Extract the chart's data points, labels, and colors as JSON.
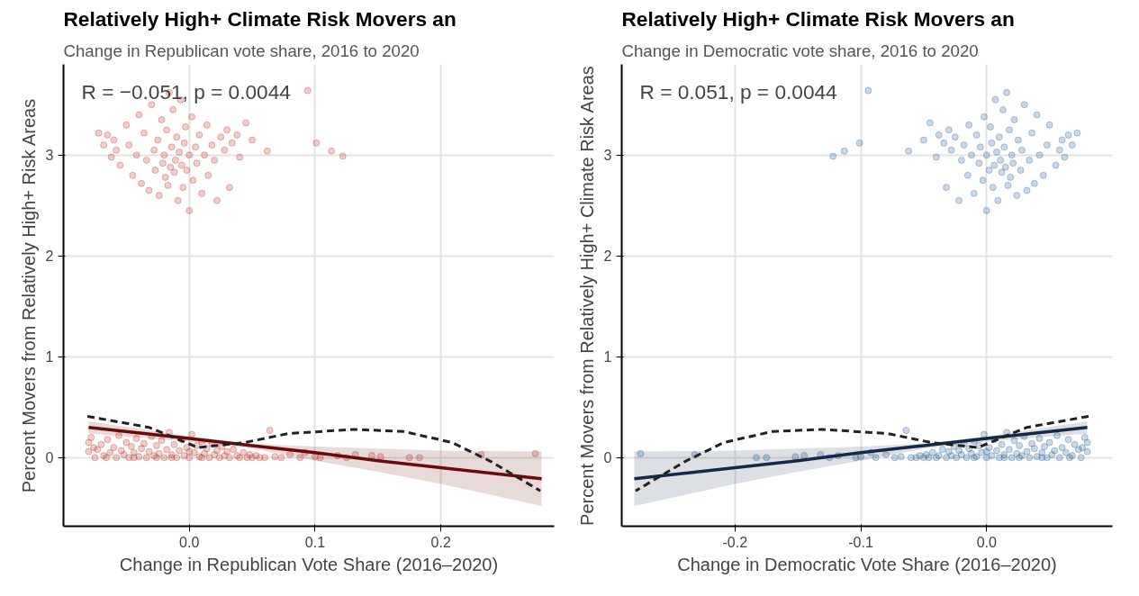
{
  "chart_data": [
    {
      "type": "scatter",
      "title": "Relatively High+ Climate Risk Movers an",
      "subtitle": "Change in Republican vote share, 2016 to 2020",
      "xlabel": "Change in Republican Vote Share (2016–2020)",
      "ylabel": "Percent Movers from Relatively High+ Risk Areas",
      "annotations": [
        "R = −0.051, p = 0.0044"
      ],
      "xlim": [
        -0.1,
        0.29
      ],
      "ylim": [
        -0.68,
        3.9
      ],
      "xticks": [
        {
          "value": 0,
          "label": "0.0"
        },
        0.1,
        0.2
      ],
      "yticks": [
        0,
        1,
        2,
        3
      ],
      "grid": true,
      "series": [
        {
          "marker": "circle",
          "color": "#c0392b",
          "x": [
            -0.065,
            -0.06,
            -0.058,
            -0.062,
            -0.055,
            -0.05,
            -0.048,
            -0.045,
            -0.042,
            -0.04,
            -0.038,
            -0.036,
            -0.034,
            -0.032,
            -0.03,
            -0.028,
            -0.027,
            -0.025,
            -0.024,
            -0.022,
            -0.021,
            -0.02,
            -0.019,
            -0.018,
            -0.017,
            -0.016,
            -0.015,
            -0.014,
            -0.013,
            -0.012,
            -0.011,
            -0.01,
            -0.009,
            -0.008,
            -0.007,
            -0.006,
            -0.005,
            -0.004,
            -0.003,
            -0.002,
            0.0,
            0.0,
            0.002,
            0.003,
            0.005,
            0.006,
            0.008,
            0.01,
            0.012,
            0.014,
            0.015,
            0.018,
            0.02,
            0.022,
            0.025,
            0.028,
            0.03,
            0.034,
            0.038,
            0.04,
            0.045,
            0.05,
            0.062,
            0.094,
            0.101,
            0.113,
            0.122,
            -0.072,
            -0.068,
            0.032,
            -0.08,
            -0.08,
            -0.078,
            -0.075,
            -0.073,
            -0.07,
            -0.068,
            -0.065,
            -0.063,
            -0.06,
            -0.058,
            -0.056,
            -0.054,
            -0.052,
            -0.05,
            -0.048,
            -0.046,
            -0.044,
            -0.042,
            -0.04,
            -0.038,
            -0.036,
            -0.034,
            -0.032,
            -0.03,
            -0.028,
            -0.026,
            -0.024,
            -0.022,
            -0.02,
            -0.018,
            -0.016,
            -0.014,
            -0.012,
            -0.01,
            -0.008,
            -0.006,
            -0.004,
            -0.002,
            0.0,
            0.002,
            0.004,
            0.006,
            0.008,
            0.01,
            0.012,
            0.014,
            0.016,
            0.018,
            0.02,
            0.022,
            0.024,
            0.026,
            0.028,
            0.03,
            0.032,
            0.035,
            0.038,
            0.04,
            0.043,
            0.046,
            0.048,
            0.05,
            0.053,
            0.056,
            0.06,
            0.064,
            0.068,
            0.073,
            0.08,
            0.088,
            0.092,
            0.1,
            0.104,
            0.118,
            0.125,
            0.132,
            0.145,
            0.152,
            0.175,
            0.183,
            0.232,
            0.275,
            -0.076,
            -0.066,
            -0.044,
            -0.026,
            -0.014,
            0.0,
            0.01
          ],
          "values": [
            3.2,
            3.15,
            3.05,
            2.98,
            2.9,
            3.3,
            3.1,
            2.8,
            3.0,
            3.4,
            2.72,
            3.22,
            2.95,
            2.65,
            3.5,
            3.05,
            2.85,
            3.15,
            2.6,
            3.35,
            2.92,
            3.0,
            2.78,
            3.25,
            2.7,
            3.62,
            2.88,
            3.08,
            3.45,
            2.83,
            2.95,
            3.18,
            2.55,
            3.03,
            3.55,
            2.9,
            2.68,
            3.12,
            3.28,
            2.85,
            3.0,
            2.45,
            3.38,
            2.75,
            3.08,
            2.92,
            3.2,
            2.62,
            3.0,
            3.3,
            2.8,
            3.1,
            2.95,
            2.55,
            3.18,
            3.05,
            3.25,
            3.12,
            3.2,
            2.98,
            3.32,
            3.15,
            3.04,
            3.64,
            3.12,
            3.04,
            2.99,
            3.22,
            3.1,
            2.68,
            0.15,
            0.06,
            0.2,
            0.0,
            0.08,
            0.13,
            0.02,
            0.18,
            0.05,
            0.1,
            0.0,
            0.22,
            0.07,
            0.03,
            0.15,
            0.0,
            0.11,
            0.05,
            0.19,
            0.01,
            0.09,
            0.14,
            0.0,
            0.06,
            0.21,
            0.02,
            0.12,
            0.04,
            0.17,
            0.0,
            0.08,
            0.25,
            0.03,
            0.13,
            0.0,
            0.07,
            0.18,
            0.02,
            0.1,
            0.0,
            0.23,
            0.05,
            0.12,
            0.01,
            0.16,
            0.04,
            0.09,
            0.0,
            0.14,
            0.03,
            0.07,
            0.0,
            0.11,
            0.02,
            0.06,
            0.0,
            0.08,
            0.02,
            0.0,
            0.05,
            0.0,
            0.03,
            0.0,
            0.02,
            0.0,
            0.0,
            0.27,
            0.01,
            0.0,
            0.03,
            0.0,
            0.05,
            0.01,
            0.0,
            0.02,
            0.0,
            0.03,
            0.02,
            0.01,
            0.0,
            0.0,
            0.03,
            0.04,
            0.1,
            0.0,
            0.0,
            0.0,
            0.0,
            0.06,
            0.0
          ]
        },
        {
          "type": "line",
          "color": "#6b0a0a",
          "line_style": "solid",
          "x": [
            -0.08,
            0,
            0.05,
            0.1,
            0.15,
            0.2,
            0.28
          ],
          "values": [
            0.3,
            0.19,
            0.12,
            0.05,
            -0.03,
            -0.1,
            -0.21
          ],
          "lower": [
            0.24,
            0.16,
            0.09,
            -0.03,
            -0.14,
            -0.26,
            -0.48
          ],
          "upper": [
            0.36,
            0.21,
            0.14,
            0.11,
            0.09,
            0.07,
            0.06
          ]
        },
        {
          "type": "line",
          "color": "#222222",
          "line_style": "dashed",
          "x": [
            -0.081,
            -0.032,
            0.007,
            0.044,
            0.079,
            0.131,
            0.17,
            0.209,
            0.24,
            0.279
          ],
          "values": [
            0.41,
            0.3,
            0.1,
            0.15,
            0.24,
            0.28,
            0.26,
            0.15,
            -0.04,
            -0.33
          ]
        }
      ]
    },
    {
      "type": "scatter",
      "title": "Relatively High+ Climate Risk Movers an",
      "subtitle": "Change in Democratic vote share, 2016 to 2020",
      "xlabel": "Change in Democratic Vote Share (2016–2020)",
      "ylabel": "Percent Movers from Relatively High+ Climate Risk Areas",
      "annotations": [
        "R = 0.051, p = 0.0044"
      ],
      "xlim": [
        -0.29,
        0.1
      ],
      "ylim": [
        -0.68,
        3.9
      ],
      "xticks": [
        -0.2,
        -0.1,
        {
          "value": 0,
          "label": "0.0"
        }
      ],
      "yticks": [
        0,
        1,
        2,
        3
      ],
      "grid": true,
      "series": [
        {
          "marker": "circle",
          "color": "#2a6496",
          "x": [
            0.065,
            0.06,
            0.058,
            0.062,
            0.055,
            0.05,
            0.048,
            0.045,
            0.042,
            0.04,
            0.038,
            0.036,
            0.034,
            0.032,
            0.03,
            0.028,
            0.027,
            0.025,
            0.024,
            0.022,
            0.021,
            0.02,
            0.019,
            0.018,
            0.017,
            0.016,
            0.015,
            0.014,
            0.013,
            0.012,
            0.011,
            0.01,
            0.009,
            0.008,
            0.007,
            0.006,
            0.005,
            0.004,
            0.003,
            0.002,
            0.0,
            0.0,
            -0.002,
            -0.003,
            -0.005,
            -0.006,
            -0.008,
            -0.01,
            -0.012,
            -0.014,
            -0.015,
            -0.018,
            -0.02,
            -0.022,
            -0.025,
            -0.028,
            -0.03,
            -0.034,
            -0.038,
            -0.04,
            -0.045,
            -0.05,
            -0.062,
            -0.094,
            -0.101,
            -0.113,
            -0.122,
            0.072,
            0.068,
            -0.032,
            0.08,
            0.08,
            0.078,
            0.075,
            0.073,
            0.07,
            0.068,
            0.065,
            0.063,
            0.06,
            0.058,
            0.056,
            0.054,
            0.052,
            0.05,
            0.048,
            0.046,
            0.044,
            0.042,
            0.04,
            0.038,
            0.036,
            0.034,
            0.032,
            0.03,
            0.028,
            0.026,
            0.024,
            0.022,
            0.02,
            0.018,
            0.016,
            0.014,
            0.012,
            0.01,
            0.008,
            0.006,
            0.004,
            0.002,
            0.0,
            -0.002,
            -0.004,
            -0.006,
            -0.008,
            -0.01,
            -0.012,
            -0.014,
            -0.016,
            -0.018,
            -0.02,
            -0.022,
            -0.024,
            -0.026,
            -0.028,
            -0.03,
            -0.032,
            -0.035,
            -0.038,
            -0.04,
            -0.043,
            -0.046,
            -0.048,
            -0.05,
            -0.053,
            -0.056,
            -0.06,
            -0.064,
            -0.068,
            -0.073,
            -0.08,
            -0.088,
            -0.092,
            -0.1,
            -0.104,
            -0.118,
            -0.125,
            -0.132,
            -0.145,
            -0.152,
            -0.175,
            -0.183,
            -0.232,
            -0.275,
            0.076,
            0.066,
            0.044,
            0.026,
            0.014,
            0.0,
            -0.01
          ],
          "values": [
            3.2,
            3.15,
            3.05,
            2.98,
            2.9,
            3.3,
            3.1,
            2.8,
            3.0,
            3.4,
            2.72,
            3.22,
            2.95,
            2.65,
            3.5,
            3.05,
            2.85,
            3.15,
            2.6,
            3.35,
            2.92,
            3.0,
            2.78,
            3.25,
            2.7,
            3.62,
            2.88,
            3.08,
            3.45,
            2.83,
            2.95,
            3.18,
            2.55,
            3.03,
            3.55,
            2.9,
            2.68,
            3.12,
            3.28,
            2.85,
            3.0,
            2.45,
            3.38,
            2.75,
            3.08,
            2.92,
            3.2,
            2.62,
            3.0,
            3.3,
            2.8,
            3.1,
            2.95,
            2.55,
            3.18,
            3.05,
            3.25,
            3.12,
            3.2,
            2.98,
            3.32,
            3.15,
            3.04,
            3.64,
            3.12,
            3.04,
            2.99,
            3.22,
            3.1,
            2.68,
            0.15,
            0.06,
            0.2,
            0.0,
            0.08,
            0.13,
            0.02,
            0.18,
            0.05,
            0.1,
            0.0,
            0.22,
            0.07,
            0.03,
            0.15,
            0.0,
            0.11,
            0.05,
            0.19,
            0.01,
            0.09,
            0.14,
            0.0,
            0.06,
            0.21,
            0.02,
            0.12,
            0.04,
            0.17,
            0.0,
            0.08,
            0.25,
            0.03,
            0.13,
            0.0,
            0.07,
            0.18,
            0.02,
            0.1,
            0.0,
            0.23,
            0.05,
            0.12,
            0.01,
            0.16,
            0.04,
            0.09,
            0.0,
            0.14,
            0.03,
            0.07,
            0.0,
            0.11,
            0.02,
            0.06,
            0.0,
            0.08,
            0.02,
            0.0,
            0.05,
            0.0,
            0.03,
            0.0,
            0.02,
            0.0,
            0.0,
            0.27,
            0.01,
            0.0,
            0.03,
            0.0,
            0.05,
            0.01,
            0.0,
            0.02,
            0.0,
            0.03,
            0.02,
            0.01,
            0.0,
            0.0,
            0.03,
            0.04,
            0.1,
            0.0,
            0.0,
            0.0,
            0.0,
            0.06,
            0.0
          ]
        },
        {
          "type": "line",
          "color": "#16284a",
          "line_style": "solid",
          "x": [
            0.08,
            0,
            -0.05,
            -0.1,
            -0.15,
            -0.2,
            -0.28
          ],
          "values": [
            0.3,
            0.19,
            0.12,
            0.05,
            -0.03,
            -0.1,
            -0.21
          ],
          "lower": [
            0.24,
            0.16,
            0.09,
            -0.03,
            -0.14,
            -0.26,
            -0.48
          ],
          "upper": [
            0.36,
            0.21,
            0.14,
            0.11,
            0.09,
            0.07,
            0.06
          ]
        },
        {
          "type": "line",
          "color": "#222222",
          "line_style": "dashed",
          "x": [
            0.081,
            0.032,
            -0.007,
            -0.044,
            -0.079,
            -0.131,
            -0.17,
            -0.209,
            -0.24,
            -0.279
          ],
          "values": [
            0.41,
            0.3,
            0.1,
            0.15,
            0.24,
            0.28,
            0.26,
            0.15,
            -0.04,
            -0.33
          ]
        }
      ]
    }
  ]
}
